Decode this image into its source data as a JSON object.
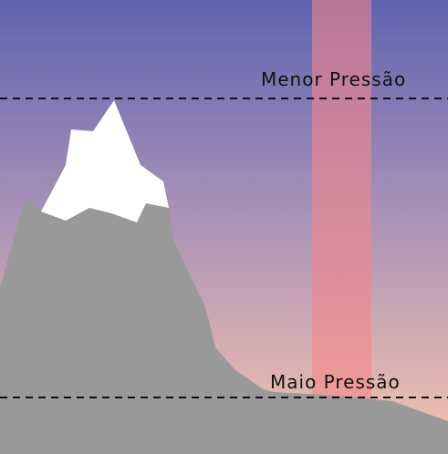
{
  "labels": {
    "low_pressure": "Menor Pressão",
    "high_pressure": "Maio Pressão"
  },
  "colors": {
    "sky_top": "#5f63b0",
    "sky_bottom": "#f6c4ad",
    "column": "#f5858a",
    "mountain": "#999999",
    "snow": "#ffffff",
    "ground": "#999999",
    "dashed_line": "#111111"
  }
}
